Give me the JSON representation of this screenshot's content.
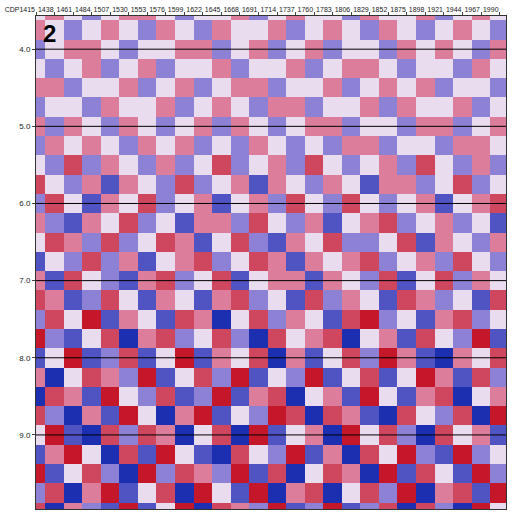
{
  "chart_data": {
    "type": "heatmap",
    "annotations": [
      {
        "text": "2"
      }
    ],
    "xlim": [
      1415,
      1998
    ],
    "xticks": [
      {
        "value": 1415,
        "label": "CDP1415"
      },
      1438,
      1461,
      1484,
      1507,
      1530,
      1553,
      1576,
      1599,
      1622,
      1645,
      1668,
      1691,
      1714,
      1737,
      1760,
      1783,
      1806,
      1829,
      1852,
      1875,
      1898,
      1921,
      1944,
      1967,
      1990
    ],
    "ylim": [
      9.96,
      3.57
    ],
    "yticks": [
      {
        "value": 4,
        "label": "4.0"
      },
      {
        "value": 5,
        "label": "5.0"
      },
      {
        "value": 6,
        "label": "6.0"
      },
      {
        "value": 7,
        "label": "7.0"
      },
      {
        "value": 8,
        "label": "8.0"
      },
      {
        "value": 9,
        "label": "9.0"
      }
    ],
    "grid": true,
    "cells": {
      "x": [
        1415,
        1438,
        1461,
        1484,
        1507,
        1530,
        1553,
        1576,
        1599,
        1622,
        1645,
        1668,
        1691,
        1714,
        1737,
        1760,
        1783,
        1806,
        1829,
        1852,
        1875,
        1898,
        1921,
        1944,
        1967,
        1990
      ],
      "y": [
        3.5,
        3.75,
        4.0,
        4.25,
        4.5,
        4.75,
        5.0,
        5.25,
        5.5,
        5.75,
        6.0,
        6.25,
        6.5,
        6.75,
        7.0,
        7.25,
        7.5,
        7.75,
        8.0,
        8.25,
        8.5,
        8.75,
        9.0,
        9.25,
        9.5,
        9.75,
        10.0
      ],
      "z": [
        [
          0,
          1,
          0,
          -1,
          0,
          1,
          1,
          0,
          -1,
          0,
          0,
          1,
          -1,
          0,
          1,
          0,
          0,
          -1,
          1,
          0,
          0,
          1,
          -1,
          0,
          1,
          0
        ],
        [
          1,
          0,
          -1,
          0,
          1,
          0,
          -1,
          1,
          0,
          -1,
          1,
          0,
          0,
          1,
          -1,
          0,
          1,
          0,
          -1,
          1,
          0,
          -1,
          0,
          1,
          0,
          -1
        ],
        [
          -1,
          0,
          1,
          1,
          0,
          -1,
          0,
          0,
          1,
          1,
          -1,
          0,
          1,
          -1,
          0,
          1,
          -1,
          0,
          0,
          -1,
          1,
          0,
          1,
          0,
          -1,
          1
        ],
        [
          0,
          -1,
          0,
          1,
          -1,
          0,
          1,
          -1,
          0,
          0,
          1,
          -1,
          0,
          0,
          1,
          -1,
          0,
          1,
          1,
          0,
          -1,
          0,
          0,
          -1,
          1,
          0
        ],
        [
          1,
          1,
          -1,
          0,
          0,
          1,
          -1,
          0,
          1,
          -1,
          0,
          1,
          1,
          -1,
          0,
          0,
          1,
          -1,
          0,
          1,
          0,
          1,
          -1,
          0,
          0,
          -1
        ],
        [
          -1,
          0,
          0,
          -1,
          1,
          0,
          0,
          1,
          -1,
          0,
          1,
          0,
          -1,
          1,
          1,
          -1,
          0,
          0,
          1,
          -1,
          1,
          0,
          0,
          1,
          -1,
          0
        ],
        [
          1,
          -1,
          1,
          0,
          -1,
          1,
          0,
          -1,
          0,
          1,
          -1,
          1,
          0,
          -1,
          0,
          1,
          1,
          -1,
          0,
          0,
          -1,
          1,
          1,
          -1,
          0,
          1
        ],
        [
          -1,
          1,
          0,
          1,
          0,
          -1,
          1,
          0,
          1,
          -1,
          0,
          -1,
          1,
          0,
          -1,
          0,
          -1,
          1,
          1,
          -1,
          0,
          0,
          -1,
          1,
          1,
          0
        ],
        [
          0,
          -1,
          2,
          -1,
          1,
          0,
          -1,
          1,
          -1,
          0,
          2,
          -1,
          0,
          1,
          -1,
          2,
          0,
          -1,
          0,
          1,
          -1,
          2,
          0,
          -1,
          1,
          -1
        ],
        [
          2,
          0,
          -1,
          1,
          -2,
          1,
          0,
          -1,
          2,
          -1,
          0,
          1,
          -2,
          1,
          0,
          -1,
          1,
          0,
          -2,
          1,
          1,
          -1,
          0,
          2,
          -1,
          0
        ],
        [
          -1,
          2,
          0,
          -2,
          1,
          0,
          2,
          -1,
          0,
          1,
          -2,
          0,
          1,
          -1,
          2,
          0,
          -1,
          2,
          0,
          -1,
          0,
          1,
          -2,
          0,
          1,
          2
        ],
        [
          1,
          -1,
          -2,
          1,
          0,
          2,
          -1,
          0,
          -2,
          1,
          1,
          -1,
          2,
          0,
          -1,
          1,
          -2,
          0,
          1,
          2,
          -1,
          0,
          1,
          -1,
          0,
          -2
        ],
        [
          0,
          2,
          1,
          -1,
          2,
          -1,
          0,
          2,
          1,
          -2,
          0,
          2,
          -1,
          -2,
          1,
          0,
          2,
          -1,
          -1,
          0,
          2,
          -2,
          1,
          0,
          -1,
          1
        ],
        [
          -2,
          0,
          -1,
          2,
          -1,
          1,
          -2,
          0,
          1,
          2,
          -1,
          0,
          2,
          1,
          -2,
          1,
          0,
          1,
          2,
          -1,
          0,
          1,
          -1,
          2,
          0,
          -1
        ],
        [
          1,
          -2,
          2,
          0,
          -1,
          -2,
          1,
          2,
          -1,
          0,
          2,
          -2,
          0,
          1,
          1,
          -2,
          1,
          0,
          -1,
          2,
          -2,
          0,
          2,
          -1,
          1,
          0
        ],
        [
          2,
          1,
          -2,
          -1,
          2,
          0,
          -2,
          1,
          0,
          -2,
          1,
          2,
          -1,
          0,
          -2,
          2,
          -1,
          1,
          0,
          -2,
          2,
          1,
          -1,
          0,
          -2,
          2
        ],
        [
          -1,
          2,
          0,
          3,
          -2,
          1,
          0,
          -2,
          2,
          1,
          -3,
          0,
          2,
          -1,
          1,
          0,
          -2,
          2,
          3,
          -1,
          0,
          -2,
          1,
          2,
          -1,
          0
        ],
        [
          3,
          -1,
          -2,
          0,
          2,
          -3,
          1,
          2,
          -1,
          0,
          2,
          -1,
          -3,
          2,
          0,
          1,
          2,
          -3,
          0,
          1,
          -2,
          2,
          0,
          -1,
          3,
          -2
        ],
        [
          -2,
          0,
          3,
          -2,
          -1,
          2,
          -2,
          0,
          3,
          -2,
          1,
          0,
          2,
          -3,
          1,
          -2,
          0,
          2,
          -1,
          3,
          1,
          -2,
          -3,
          1,
          0,
          2
        ],
        [
          1,
          -3,
          0,
          2,
          1,
          -1,
          3,
          -2,
          0,
          2,
          -1,
          3,
          -2,
          0,
          -1,
          3,
          -2,
          0,
          2,
          -2,
          0,
          3,
          1,
          -2,
          2,
          -1
        ],
        [
          -3,
          2,
          1,
          -2,
          3,
          0,
          -1,
          2,
          -2,
          -1,
          3,
          -2,
          1,
          2,
          -3,
          0,
          1,
          -2,
          3,
          0,
          -2,
          1,
          2,
          -3,
          0,
          1
        ],
        [
          2,
          -1,
          -3,
          1,
          -2,
          3,
          0,
          -3,
          1,
          3,
          -2,
          0,
          -1,
          3,
          2,
          -3,
          2,
          1,
          -2,
          -3,
          2,
          0,
          -1,
          2,
          -3,
          3
        ],
        [
          0,
          3,
          -2,
          -3,
          2,
          -1,
          2,
          1,
          -3,
          0,
          2,
          -3,
          3,
          -2,
          0,
          1,
          -3,
          3,
          0,
          2,
          -1,
          -3,
          2,
          0,
          1,
          -2
        ],
        [
          -2,
          1,
          3,
          0,
          -3,
          2,
          -2,
          3,
          0,
          -2,
          -3,
          2,
          0,
          -1,
          3,
          -2,
          1,
          -3,
          2,
          0,
          3,
          -1,
          -2,
          3,
          -1,
          0
        ],
        [
          3,
          -2,
          0,
          2,
          -1,
          -3,
          3,
          -1,
          2,
          1,
          -1,
          3,
          -2,
          2,
          -3,
          0,
          2,
          1,
          -3,
          3,
          -2,
          2,
          0,
          -2,
          3,
          -1
        ],
        [
          -1,
          2,
          -3,
          1,
          3,
          -2,
          0,
          2,
          -3,
          3,
          0,
          -2,
          3,
          -3,
          1,
          2,
          -3,
          0,
          2,
          -1,
          3,
          -3,
          1,
          2,
          -2,
          3
        ],
        [
          2,
          -3,
          1,
          -1,
          -2,
          3,
          -2,
          0,
          3,
          -3,
          2,
          1,
          -1,
          3,
          -2,
          -1,
          3,
          -2,
          -1,
          2,
          -3,
          2,
          -1,
          -3,
          3,
          0
        ]
      ],
      "zlim": [
        -3,
        3
      ]
    }
  }
}
